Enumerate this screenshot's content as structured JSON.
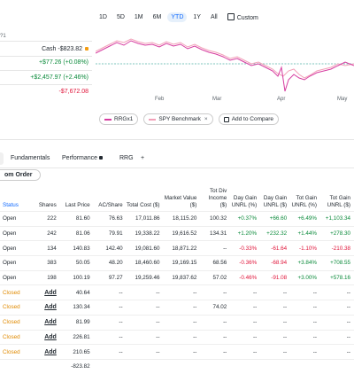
{
  "summary": {
    "top_fragment": "?1",
    "cash": "Cash -$823.82",
    "day_gain": "+$77.26 (+0.08%)",
    "total_gain": "+$2,457.97 (+2.46%)",
    "neg_value": "-$7,672.08"
  },
  "timeframes": [
    "1D",
    "5D",
    "1M",
    "6M",
    "YTD",
    "1Y",
    "All"
  ],
  "timeframe_active": "YTD",
  "custom_label": "Custom",
  "chart": {
    "x_labels": [
      "Feb",
      "Mar",
      "Apr",
      "May"
    ],
    "series": [
      {
        "name": "RRGx1",
        "color": "#d63ca0"
      },
      {
        "name": "SPY Benchmark",
        "color": "#f2a0b8"
      }
    ],
    "baseline_color": "#52b3a8"
  },
  "legend": {
    "series1": "RRGx1",
    "series2": "SPY Benchmark",
    "compare": "Add to Compare"
  },
  "tabs": [
    "Fundamentals",
    "Performance",
    "RRG",
    "+"
  ],
  "custom_order": "om Order",
  "table": {
    "headers": [
      "Status",
      "Shares",
      "Last Price",
      "AC/Share",
      "Total Cost ($)",
      "Market Value ($)",
      "Tot Div Income ($)",
      "Day Gain UNRL (%)",
      "Day Gain UNRL ($)",
      "Tot Gain UNRL (%)",
      "Tot Gain UNRL ($)"
    ],
    "rows": [
      [
        "Open",
        "222",
        "81.60",
        "76.63",
        "17,011.86",
        "18,115.20",
        "100.32",
        "+0.37%",
        "+66.60",
        "+6.49%",
        "+1,103.34"
      ],
      [
        "Open",
        "242",
        "81.06",
        "79.91",
        "19,338.22",
        "19,616.52",
        "134.31",
        "+1.20%",
        "+232.32",
        "+1.44%",
        "+278.30"
      ],
      [
        "Open",
        "134",
        "140.83",
        "142.40",
        "19,081.60",
        "18,871.22",
        "--",
        "-0.33%",
        "-61.64",
        "-1.10%",
        "-210.38"
      ],
      [
        "Open",
        "383",
        "50.05",
        "48.20",
        "18,460.60",
        "19,169.15",
        "68.56",
        "-0.36%",
        "-68.94",
        "+3.84%",
        "+708.55"
      ],
      [
        "Open",
        "198",
        "100.19",
        "97.27",
        "19,259.46",
        "19,837.62",
        "57.02",
        "-0.46%",
        "-91.08",
        "+3.00%",
        "+578.16"
      ],
      [
        "Closed",
        "Add",
        "40.64",
        "--",
        "--",
        "--",
        "--",
        "--",
        "--",
        "--",
        "--"
      ],
      [
        "Closed",
        "Add",
        "130.34",
        "--",
        "--",
        "--",
        "74.02",
        "--",
        "--",
        "--",
        "--"
      ],
      [
        "Closed",
        "Add",
        "81.99",
        "--",
        "--",
        "--",
        "--",
        "--",
        "--",
        "--",
        "--"
      ],
      [
        "Closed",
        "Add",
        "226.81",
        "--",
        "--",
        "--",
        "--",
        "--",
        "--",
        "--",
        "--"
      ],
      [
        "Closed",
        "Add",
        "210.65",
        "--",
        "--",
        "--",
        "--",
        "--",
        "--",
        "--",
        "--"
      ],
      [
        "",
        "",
        "-823.82",
        "",
        "",
        "",
        "",
        "",
        "",
        "",
        ""
      ]
    ]
  }
}
